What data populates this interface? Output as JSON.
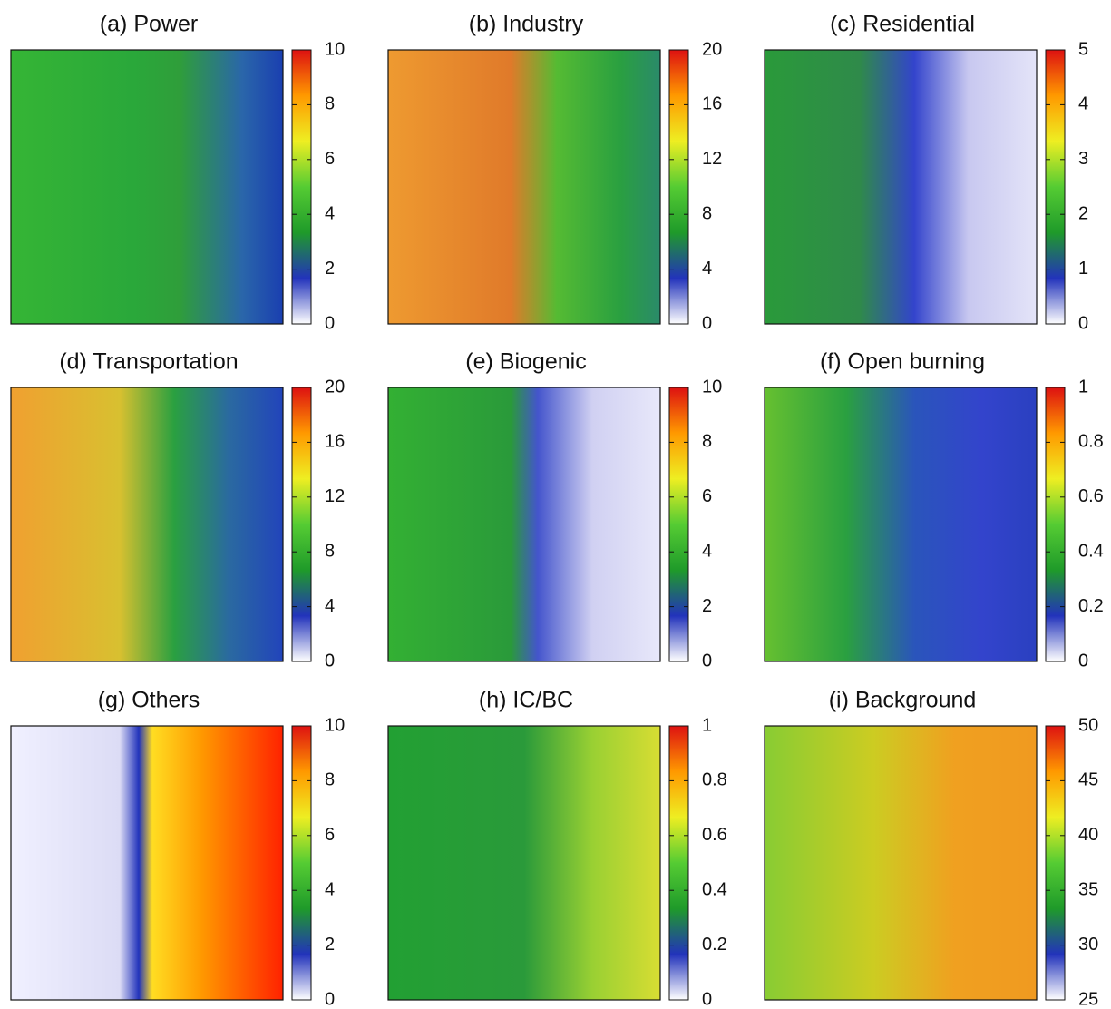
{
  "chart_data": [
    {
      "type": "heatmap",
      "title": "(a) Power",
      "ylim": [
        0,
        10
      ],
      "yticks": [
        0,
        2,
        4,
        6,
        8,
        10
      ],
      "colorscale": [
        "#ffffff",
        "#2233bb",
        "#1f9a2a",
        "#55cc33",
        "#eeee22",
        "#ff9900",
        "#dd1111"
      ]
    },
    {
      "type": "heatmap",
      "title": "(b) Industry",
      "ylim": [
        0,
        20
      ],
      "yticks": [
        0,
        4,
        8,
        12,
        16,
        20
      ],
      "colorscale": [
        "#ffffff",
        "#2233bb",
        "#1f9a2a",
        "#55cc33",
        "#eeee22",
        "#ff9900",
        "#dd1111"
      ]
    },
    {
      "type": "heatmap",
      "title": "(c) Residential",
      "ylim": [
        0,
        5
      ],
      "yticks": [
        0,
        1,
        2,
        3,
        4,
        5
      ],
      "colorscale": [
        "#ffffff",
        "#2233bb",
        "#1f9a2a",
        "#55cc33",
        "#eeee22",
        "#ff9900",
        "#dd1111"
      ]
    },
    {
      "type": "heatmap",
      "title": "(d) Transportation",
      "ylim": [
        0,
        20
      ],
      "yticks": [
        0,
        4,
        8,
        12,
        16,
        20
      ],
      "colorscale": [
        "#ffffff",
        "#2233bb",
        "#1f9a2a",
        "#55cc33",
        "#eeee22",
        "#ff9900",
        "#dd1111"
      ]
    },
    {
      "type": "heatmap",
      "title": "(e) Biogenic",
      "ylim": [
        0,
        10
      ],
      "yticks": [
        0,
        2,
        4,
        6,
        8,
        10
      ],
      "colorscale": [
        "#ffffff",
        "#2233bb",
        "#1f9a2a",
        "#55cc33",
        "#eeee22",
        "#ff9900",
        "#dd1111"
      ]
    },
    {
      "type": "heatmap",
      "title": "(f) Open burning",
      "ylim": [
        0,
        1
      ],
      "yticks": [
        0,
        0.2,
        0.4,
        0.6,
        0.8,
        1
      ],
      "colorscale": [
        "#ffffff",
        "#2233bb",
        "#1f9a2a",
        "#55cc33",
        "#eeee22",
        "#ff9900",
        "#dd1111"
      ]
    },
    {
      "type": "heatmap",
      "title": "(g) Others",
      "ylim": [
        0,
        10
      ],
      "yticks": [
        0,
        2,
        4,
        6,
        8,
        10
      ],
      "colorscale": [
        "#ffffff",
        "#2233bb",
        "#1f9a2a",
        "#55cc33",
        "#eeee22",
        "#ff9900",
        "#dd1111"
      ]
    },
    {
      "type": "heatmap",
      "title": "(h) IC/BC",
      "ylim": [
        0,
        1
      ],
      "yticks": [
        0,
        0.2,
        0.4,
        0.6,
        0.8,
        1
      ],
      "colorscale": [
        "#ffffff",
        "#2233bb",
        "#1f9a2a",
        "#55cc33",
        "#eeee22",
        "#ff9900",
        "#dd1111"
      ]
    },
    {
      "type": "heatmap",
      "title": "(i) Background",
      "ylim": [
        25,
        50
      ],
      "yticks": [
        25,
        30,
        35,
        40,
        45,
        50
      ],
      "colorscale": [
        "#ffffff",
        "#2233bb",
        "#1f9a2a",
        "#55cc33",
        "#eeee22",
        "#ff9900",
        "#dd1111"
      ]
    }
  ]
}
